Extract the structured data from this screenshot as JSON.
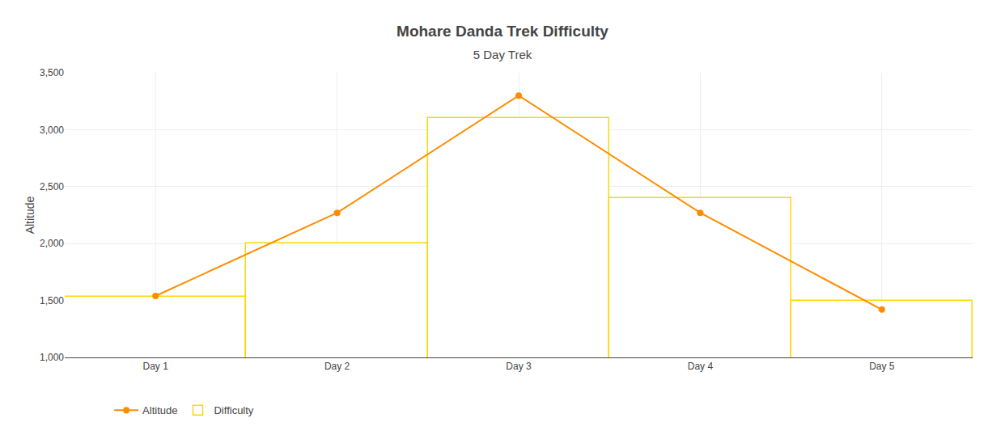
{
  "chart_data": {
    "type": "line",
    "title": "Mohare Danda Trek Difficulty",
    "subtitle": "5 Day Trek",
    "categories": [
      "Day 1",
      "Day 2",
      "Day 3",
      "Day 4",
      "Day 5"
    ],
    "series": [
      {
        "name": "Altitude",
        "type": "line",
        "color": "#FF8C00",
        "marker": "circle",
        "values": [
          1540,
          2270,
          3300,
          2270,
          1420
        ]
      },
      {
        "name": "Difficulty",
        "type": "bar",
        "color": "#FFD700",
        "values": [
          1530,
          2000,
          3100,
          2400,
          1500
        ]
      }
    ],
    "ylabel": "Altitude",
    "ylim": [
      1000,
      3500
    ],
    "yticks": [
      {
        "value": 1000,
        "label": "1,000"
      },
      {
        "value": 1500,
        "label": "1,500"
      },
      {
        "value": 2000,
        "label": "2,000"
      },
      {
        "value": 2500,
        "label": "2,500"
      },
      {
        "value": 3000,
        "label": "3,000"
      },
      {
        "value": 3500,
        "label": "3,500"
      }
    ],
    "grid": true,
    "legend": "lower left"
  }
}
